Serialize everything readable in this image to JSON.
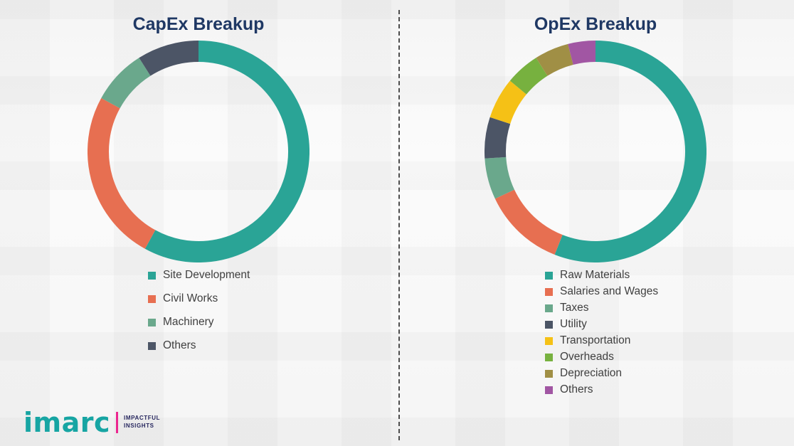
{
  "chart_data": [
    {
      "type": "pie",
      "donut": true,
      "title": "CapEx Breakup",
      "labels": [
        "Site Development",
        "Civil Works",
        "Machinery",
        "Others"
      ],
      "values": [
        58,
        25,
        8,
        9
      ],
      "colors": [
        "#2aa496",
        "#e76f51",
        "#6aa88c",
        "#4c5566"
      ],
      "legend_position": "bottom",
      "start_angle_deg": 0,
      "hole_ratio": 0.8
    },
    {
      "type": "pie",
      "donut": true,
      "title": "OpEx Breakup",
      "labels": [
        "Raw Materials",
        "Salaries and Wages",
        "Taxes",
        "Utility",
        "Transportation",
        "Overheads",
        "Depreciation",
        "Others"
      ],
      "values": [
        56,
        12,
        6,
        6,
        6,
        5,
        5,
        4
      ],
      "colors": [
        "#2aa496",
        "#e76f51",
        "#6aa88c",
        "#4c5566",
        "#f5c116",
        "#77b13f",
        "#a08f45",
        "#a156a3"
      ],
      "legend_position": "bottom",
      "start_angle_deg": 0,
      "hole_ratio": 0.8
    }
  ],
  "logo": {
    "brand": "imarc",
    "tagline_line1": "IMPACTFUL",
    "tagline_line2": "INSIGHTS",
    "brand_color": "#17a5a3",
    "accent_color": "#ec268f",
    "tagline_color": "#26265e"
  },
  "divider": {
    "style": "dashed"
  }
}
